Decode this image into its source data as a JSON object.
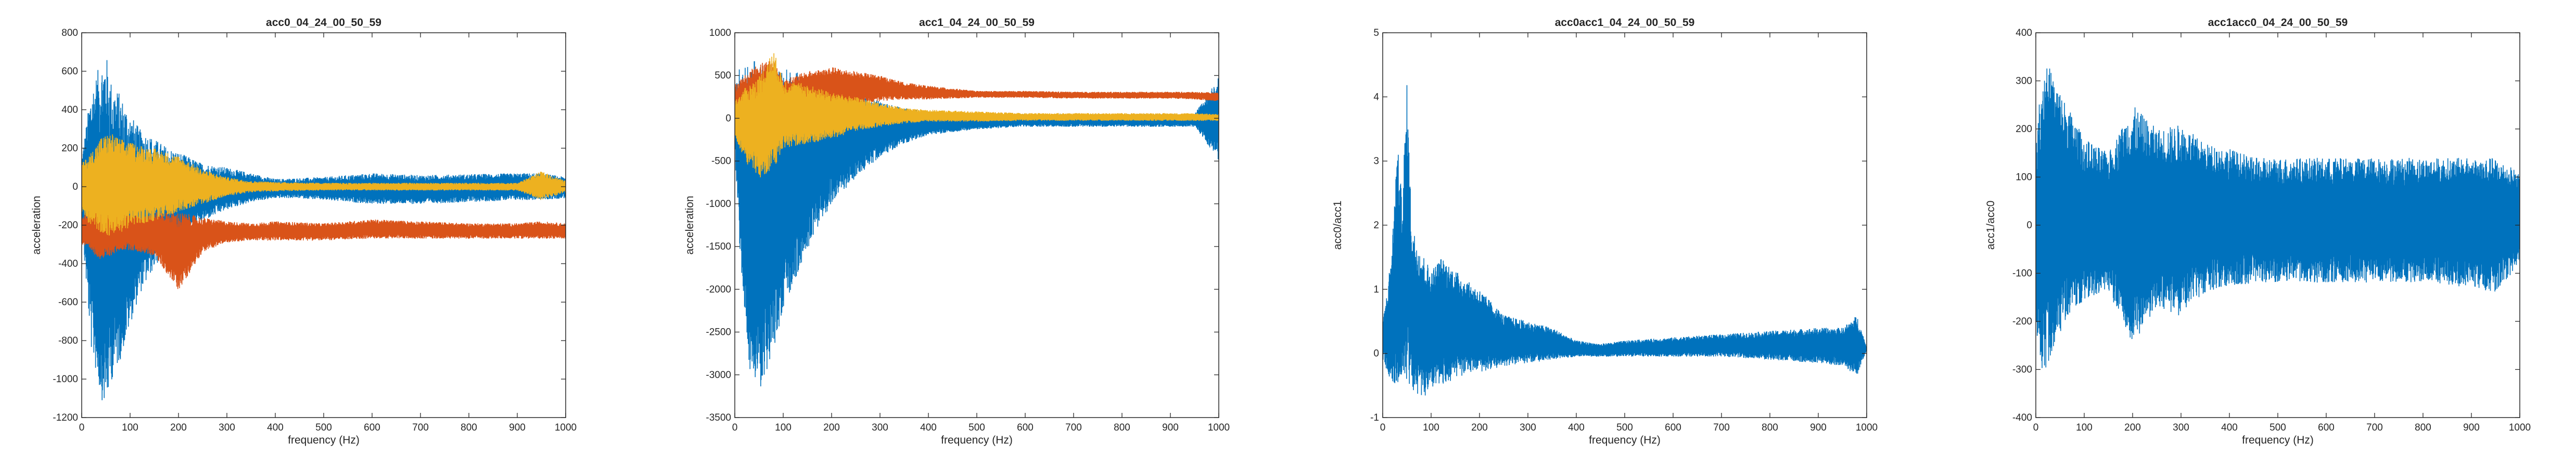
{
  "chart_data": [
    {
      "type": "line",
      "title": "acc0_04_24_00_50_59",
      "xlabel": "frequency (Hz)",
      "ylabel": "acceleration",
      "xlim": [
        0,
        1000
      ],
      "ylim": [
        -1200,
        800
      ],
      "xticks": [
        "0",
        "100",
        "200",
        "300",
        "400",
        "500",
        "600",
        "700",
        "800",
        "900",
        "1000"
      ],
      "yticks": [
        "-1200",
        "-1000",
        "-800",
        "-600",
        "-400",
        "-200",
        "0",
        "200",
        "400",
        "600",
        "800"
      ],
      "grid": false,
      "series": [
        {
          "color": "#0072BD",
          "x": [
            0,
            20,
            40,
            50,
            60,
            80,
            100,
            120,
            150,
            180,
            200,
            250,
            300,
            350,
            400,
            450,
            500,
            600,
            700,
            800,
            900,
            950,
            1000
          ],
          "upper": [
            150,
            520,
            650,
            700,
            560,
            480,
            380,
            300,
            250,
            200,
            180,
            120,
            100,
            70,
            40,
            45,
            50,
            70,
            60,
            65,
            70,
            70,
            50
          ],
          "lower": [
            -200,
            -850,
            -1100,
            -1150,
            -1020,
            -900,
            -720,
            -560,
            -420,
            -330,
            -280,
            -180,
            -120,
            -80,
            -60,
            -60,
            -70,
            -90,
            -90,
            -80,
            -70,
            -70,
            -60
          ]
        },
        {
          "color": "#D95319",
          "x": [
            0,
            20,
            40,
            60,
            80,
            100,
            150,
            200,
            250,
            300,
            350,
            400,
            500,
            600,
            700,
            800,
            900,
            950,
            1000
          ],
          "upper": [
            -150,
            -120,
            -100,
            -130,
            -120,
            -140,
            -130,
            -130,
            -160,
            -180,
            -190,
            -180,
            -190,
            -170,
            -180,
            -190,
            -190,
            -180,
            -190
          ],
          "lower": [
            -300,
            -340,
            -380,
            -360,
            -330,
            -330,
            -360,
            -540,
            -340,
            -290,
            -280,
            -280,
            -280,
            -270,
            -270,
            -270,
            -270,
            -270,
            -270
          ]
        },
        {
          "color": "#EDB120",
          "x": [
            0,
            20,
            40,
            60,
            80,
            100,
            150,
            200,
            250,
            300,
            350,
            400,
            500,
            600,
            700,
            800,
            900,
            950,
            1000
          ],
          "upper": [
            120,
            180,
            260,
            280,
            250,
            230,
            200,
            160,
            90,
            50,
            30,
            25,
            20,
            20,
            20,
            20,
            20,
            80,
            30
          ],
          "lower": [
            -140,
            -210,
            -240,
            -260,
            -240,
            -210,
            -180,
            -130,
            -90,
            -50,
            -30,
            -25,
            -20,
            -20,
            -20,
            -20,
            -20,
            -70,
            -30
          ]
        }
      ]
    },
    {
      "type": "line",
      "title": "acc1_04_24_00_50_59",
      "xlabel": "frequency (Hz)",
      "ylabel": "acceleration",
      "xlim": [
        0,
        1000
      ],
      "ylim": [
        -3500,
        1000
      ],
      "xticks": [
        "0",
        "100",
        "200",
        "300",
        "400",
        "500",
        "600",
        "700",
        "800",
        "900",
        "1000"
      ],
      "yticks": [
        "-3500",
        "-3000",
        "-2500",
        "-2000",
        "-1500",
        "-1000",
        "-500",
        "0",
        "500",
        "1000"
      ],
      "grid": false,
      "series": [
        {
          "color": "#0072BD",
          "x": [
            0,
            10,
            30,
            50,
            70,
            100,
            130,
            160,
            200,
            250,
            300,
            350,
            400,
            500,
            600,
            700,
            800,
            900,
            950,
            1000
          ],
          "upper": [
            300,
            600,
            700,
            650,
            600,
            600,
            550,
            500,
            450,
            300,
            200,
            120,
            80,
            60,
            50,
            50,
            50,
            50,
            50,
            500
          ],
          "lower": [
            -400,
            -1500,
            -3000,
            -3200,
            -2900,
            -2300,
            -1800,
            -1400,
            -1000,
            -700,
            -450,
            -300,
            -200,
            -130,
            -100,
            -100,
            -100,
            -100,
            -100,
            -500
          ]
        },
        {
          "color": "#D95319",
          "x": [
            0,
            20,
            50,
            80,
            100,
            150,
            200,
            250,
            300,
            350,
            400,
            500,
            600,
            700,
            800,
            900,
            950,
            1000
          ],
          "upper": [
            400,
            500,
            650,
            700,
            450,
            550,
            600,
            550,
            500,
            420,
            380,
            320,
            320,
            310,
            310,
            310,
            310,
            300
          ],
          "lower": [
            -50,
            -100,
            -200,
            -150,
            50,
            0,
            100,
            150,
            200,
            220,
            220,
            240,
            240,
            230,
            230,
            230,
            220,
            200
          ]
        },
        {
          "color": "#EDB120",
          "x": [
            0,
            20,
            50,
            80,
            100,
            150,
            200,
            250,
            300,
            350,
            400,
            500,
            600,
            700,
            800,
            900,
            950,
            1000
          ],
          "upper": [
            200,
            350,
            500,
            800,
            450,
            400,
            300,
            250,
            180,
            120,
            100,
            80,
            60,
            60,
            60,
            60,
            60,
            50
          ],
          "lower": [
            -200,
            -500,
            -700,
            -600,
            -350,
            -300,
            -250,
            -150,
            -100,
            -60,
            -40,
            -40,
            -30,
            -30,
            -30,
            -30,
            -30,
            -30
          ]
        }
      ]
    },
    {
      "type": "line",
      "title": "acc0acc1_04_24_00_50_59",
      "xlabel": "frequency (Hz)",
      "ylabel": "acc0/acc1",
      "xlim": [
        0,
        1000
      ],
      "ylim": [
        -1,
        5
      ],
      "xticks": [
        "0",
        "100",
        "200",
        "300",
        "400",
        "500",
        "600",
        "700",
        "800",
        "900",
        "1000"
      ],
      "yticks": [
        "-1",
        "0",
        "1",
        "2",
        "3",
        "4",
        "5"
      ],
      "grid": false,
      "series": [
        {
          "color": "#0072BD",
          "x": [
            0,
            10,
            20,
            30,
            40,
            50,
            60,
            80,
            100,
            120,
            150,
            180,
            200,
            250,
            300,
            350,
            400,
            450,
            500,
            600,
            700,
            800,
            900,
            950,
            980,
            1000
          ],
          "upper": [
            0.5,
            1.0,
            1.8,
            3.3,
            2.4,
            4.2,
            2.0,
            1.6,
            1.3,
            1.5,
            1.3,
            1.1,
            1.0,
            0.6,
            0.5,
            0.4,
            0.2,
            0.15,
            0.2,
            0.25,
            0.3,
            0.35,
            0.4,
            0.4,
            0.6,
            0.1
          ],
          "lower": [
            -0.1,
            -0.3,
            -0.5,
            -0.6,
            -0.5,
            -0.4,
            -0.6,
            -0.7,
            -0.6,
            -0.5,
            -0.4,
            -0.3,
            -0.3,
            -0.2,
            -0.15,
            -0.1,
            -0.05,
            -0.05,
            -0.05,
            -0.05,
            -0.05,
            -0.1,
            -0.15,
            -0.2,
            -0.35,
            0.05
          ]
        }
      ]
    },
    {
      "type": "line",
      "title": "acc1acc0_04_24_00_50_59",
      "xlabel": "frequency (Hz)",
      "ylabel": "acc1/acc0",
      "xlim": [
        0,
        1000
      ],
      "ylim": [
        -400,
        400
      ],
      "xticks": [
        "0",
        "100",
        "200",
        "300",
        "400",
        "500",
        "600",
        "700",
        "800",
        "900",
        "1000"
      ],
      "yticks": [
        "-400",
        "-300",
        "-200",
        "-100",
        "0",
        "100",
        "200",
        "300",
        "400"
      ],
      "grid": false,
      "series": [
        {
          "color": "#0072BD",
          "x": [
            0,
            10,
            20,
            40,
            60,
            80,
            100,
            150,
            200,
            250,
            300,
            350,
            400,
            450,
            500,
            600,
            700,
            800,
            900,
            950,
            1000
          ],
          "upper": [
            150,
            300,
            350,
            300,
            260,
            220,
            180,
            150,
            250,
            200,
            210,
            170,
            160,
            140,
            140,
            140,
            140,
            140,
            140,
            140,
            110
          ],
          "lower": [
            -200,
            -320,
            -300,
            -250,
            -200,
            -180,
            -160,
            -140,
            -250,
            -170,
            -190,
            -140,
            -130,
            -120,
            -120,
            -120,
            -120,
            -120,
            -130,
            -140,
            -80
          ]
        }
      ]
    }
  ]
}
